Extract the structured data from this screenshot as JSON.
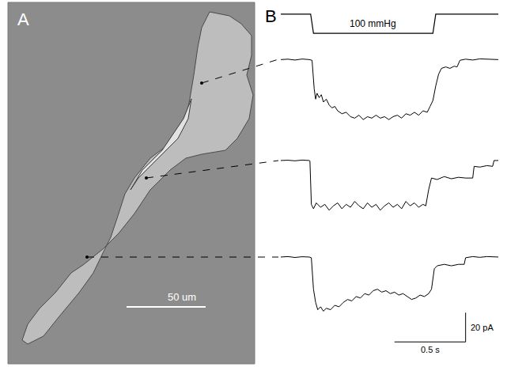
{
  "panel_labels": [
    "A",
    "B"
  ],
  "micrograph": {
    "scale_bar": {
      "length": 50,
      "label": "50 um"
    }
  },
  "chart_data": {
    "type": "line",
    "tick_labels": false,
    "grid": false,
    "color": "#000000",
    "xlim": [
      0,
      1.53
    ],
    "pressure": {
      "label": "100 mmHg",
      "ylim": [
        -133,
        33
      ],
      "x": [
        0,
        0.21,
        0.23,
        1.07,
        1.09,
        1.53
      ],
      "values": [
        0,
        0,
        -100,
        -100,
        0,
        0
      ]
    },
    "currents": [
      {
        "ylim": [
          -49,
          11
        ],
        "x": [
          0,
          0.05,
          0.1,
          0.15,
          0.2,
          0.22,
          0.235,
          0.245,
          0.255,
          0.27,
          0.285,
          0.3,
          0.32,
          0.34,
          0.36,
          0.38,
          0.4,
          0.43,
          0.46,
          0.49,
          0.52,
          0.55,
          0.58,
          0.61,
          0.64,
          0.67,
          0.7,
          0.73,
          0.76,
          0.79,
          0.82,
          0.85,
          0.88,
          0.91,
          0.94,
          0.97,
          1.0,
          1.03,
          1.05,
          1.07,
          1.09,
          1.11,
          1.13,
          1.16,
          1.19,
          1.22,
          1.24,
          1.26,
          1.3,
          1.35,
          1.4,
          1.45,
          1.53
        ],
        "values": [
          0,
          0.3,
          -0.3,
          0.4,
          0,
          -0.5,
          -20,
          -27,
          -23,
          -26,
          -24,
          -29,
          -27,
          -31,
          -33,
          -32,
          -35,
          -37,
          -36,
          -39,
          -40,
          -38,
          -41,
          -39,
          -40,
          -38,
          -40,
          -39,
          -41,
          -39,
          -38,
          -40,
          -37,
          -38,
          -36,
          -38,
          -35,
          -36,
          -32,
          -28,
          -18,
          -10,
          -6,
          -5,
          -6,
          -4.5,
          -5,
          -0.5,
          0.3,
          -0.3,
          0.5,
          0.2,
          0
        ]
      },
      {
        "ylim": [
          -39,
          11
        ],
        "x": [
          0,
          0.05,
          0.1,
          0.15,
          0.2,
          0.205,
          0.215,
          0.23,
          0.25,
          0.28,
          0.31,
          0.34,
          0.37,
          0.4,
          0.43,
          0.46,
          0.49,
          0.52,
          0.55,
          0.58,
          0.61,
          0.64,
          0.67,
          0.7,
          0.73,
          0.76,
          0.79,
          0.82,
          0.85,
          0.88,
          0.91,
          0.94,
          0.97,
          1.0,
          1.02,
          1.04,
          1.06,
          1.1,
          1.15,
          1.2,
          1.25,
          1.3,
          1.35,
          1.36,
          1.4,
          1.45,
          1.49,
          1.5,
          1.53
        ],
        "values": [
          0,
          0.2,
          -0.2,
          0.3,
          0,
          -0.3,
          -30,
          -33,
          -29,
          -32,
          -30,
          -34,
          -31,
          -29,
          -33,
          -30,
          -32,
          -28,
          -31,
          -33,
          -29,
          -32,
          -30,
          -34,
          -31,
          -29,
          -32,
          -30,
          -33,
          -28,
          -31,
          -29,
          -32,
          -30,
          -31,
          -20,
          -12,
          -13,
          -11,
          -12.5,
          -11.5,
          -12,
          -12,
          -4,
          -4.5,
          -3.5,
          -4,
          0,
          0
        ]
      },
      {
        "ylim": [
          -70,
          11
        ],
        "x": [
          0,
          0.05,
          0.1,
          0.15,
          0.2,
          0.215,
          0.23,
          0.245,
          0.26,
          0.28,
          0.3,
          0.32,
          0.35,
          0.38,
          0.41,
          0.44,
          0.47,
          0.5,
          0.53,
          0.56,
          0.59,
          0.62,
          0.65,
          0.68,
          0.71,
          0.74,
          0.77,
          0.8,
          0.83,
          0.86,
          0.89,
          0.92,
          0.95,
          0.98,
          1.01,
          1.04,
          1.06,
          1.08,
          1.1,
          1.15,
          1.2,
          1.25,
          1.29,
          1.3,
          1.35,
          1.4,
          1.45,
          1.53
        ],
        "values": [
          0,
          0.3,
          -0.3,
          0.2,
          0,
          -0.5,
          -22,
          -31,
          -36,
          -34,
          -37,
          -35,
          -36,
          -33,
          -34,
          -31,
          -29,
          -30,
          -27,
          -28,
          -25,
          -26,
          -23,
          -22,
          -24,
          -23,
          -25,
          -24,
          -26,
          -25,
          -27,
          -29,
          -28,
          -26,
          -27,
          -25,
          -22,
          -8,
          -6,
          -5,
          -6,
          -5,
          -5,
          -0.5,
          0.3,
          -0.2,
          0.3,
          0
        ]
      }
    ],
    "scale_bar": {
      "x": {
        "length": 0.5,
        "label": "0.5 s"
      },
      "y": {
        "length": 20,
        "label": "20 pA"
      }
    }
  }
}
